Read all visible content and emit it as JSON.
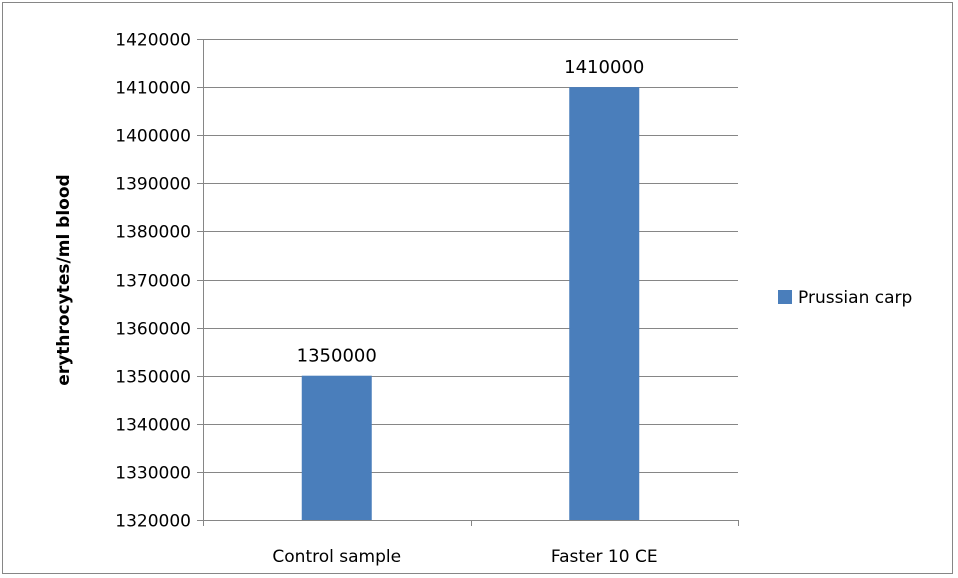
{
  "chart_data": {
    "type": "bar",
    "title": "",
    "xlabel": "",
    "ylabel": "erythrocytes/ml blood",
    "categories": [
      "Control sample",
      "Faster 10 CE"
    ],
    "series": [
      {
        "name": "Prussian carp",
        "values": [
          1350000,
          1410000
        ],
        "color": "#4a7ebb"
      }
    ],
    "ylim": [
      1320000,
      1420000
    ],
    "ytick_step": 10000,
    "data_labels": true,
    "grid": "horizontal",
    "legend_position": "right",
    "colors": {
      "bar": "#4a7ebb",
      "grid": "#868686",
      "axis": "#868686"
    }
  }
}
